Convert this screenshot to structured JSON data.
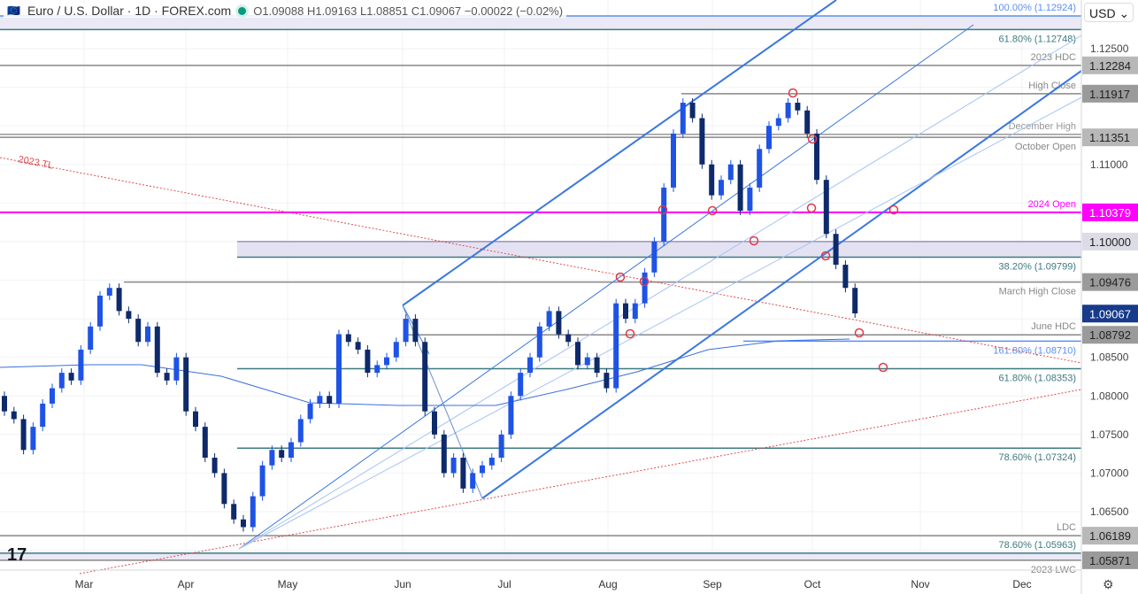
{
  "header": {
    "title": "Euro / U.S. Dollar · 1D · FOREX.com",
    "ohlc": "O1.09088 H1.09163 L1.08851 C1.09067 −0.00022 (−0.02%)",
    "currency": "USD"
  },
  "chart_data": {
    "type": "candlestick",
    "symbol": "EURUSD",
    "interval": "1D",
    "x_ticks": [
      "Mar",
      "Apr",
      "May",
      "Jun",
      "Jul",
      "Aug",
      "Sep",
      "Oct",
      "Nov",
      "Dec"
    ],
    "y_ticks": [
      "1.12500",
      "1.11000",
      "1.08500",
      "1.08000",
      "1.07500",
      "1.07000",
      "1.06500"
    ],
    "ylim": [
      1.0555,
      1.1313
    ],
    "closes": [
      1.078,
      1.077,
      1.073,
      1.076,
      1.079,
      1.081,
      1.083,
      1.082,
      1.086,
      1.089,
      1.093,
      1.094,
      1.091,
      1.09,
      1.087,
      1.089,
      1.083,
      1.082,
      1.085,
      1.078,
      1.076,
      1.072,
      1.07,
      1.066,
      1.064,
      1.063,
      1.067,
      1.071,
      1.073,
      1.072,
      1.074,
      1.077,
      1.079,
      1.08,
      1.079,
      1.088,
      1.087,
      1.086,
      1.083,
      1.084,
      1.085,
      1.087,
      1.09,
      1.087,
      1.078,
      1.075,
      1.07,
      1.072,
      1.068,
      1.07,
      1.071,
      1.072,
      1.075,
      1.08,
      1.083,
      1.085,
      1.089,
      1.091,
      1.088,
      1.087,
      1.084,
      1.085,
      1.083,
      1.081,
      1.092,
      1.09,
      1.092,
      1.096,
      1.1,
      1.107,
      1.114,
      1.118,
      1.116,
      1.11,
      1.106,
      1.108,
      1.11,
      1.104,
      1.107,
      1.112,
      1.115,
      1.116,
      1.118,
      1.117,
      1.114,
      1.108,
      1.101,
      1.097,
      1.094,
      1.0907
    ],
    "last_price": "1.09067",
    "levels": [
      {
        "price": 1.12924,
        "label": "100.00% (1.12924)",
        "color": "#5b8ff0"
      },
      {
        "price": 1.12748,
        "label": "61.80% (1.12748)",
        "color": "#3d7a80"
      },
      {
        "price": 1.12284,
        "label": "2023 HDC",
        "color": "#888888",
        "badge": "1.12284"
      },
      {
        "price": 1.11917,
        "label": "High Close",
        "color": "#888888",
        "badge": "1.11917"
      },
      {
        "price": 1.1139,
        "label": "December High",
        "color": "#999999"
      },
      {
        "price": 1.11351,
        "label": "October Open",
        "color": "#888888",
        "badge": "1.11351"
      },
      {
        "price": 1.10379,
        "label": "2024 Open",
        "color": "#ff00ff",
        "badge": "1.10379"
      },
      {
        "price": 1.1,
        "label": "",
        "color": "#9a93b8",
        "badge": "1.10000"
      },
      {
        "price": 1.09799,
        "label": "38.20% (1.09799)",
        "color": "#3d7a80"
      },
      {
        "price": 1.09476,
        "label": "March High Close",
        "color": "#888888",
        "badge": "1.09476"
      },
      {
        "price": 1.08792,
        "label": "June HDC",
        "color": "#888888",
        "badge": "1.08792"
      },
      {
        "price": 1.0871,
        "label": "161.80% (1.08710)",
        "color": "#5b8ff0"
      },
      {
        "price": 1.08353,
        "label": "61.80% (1.08353)",
        "color": "#3d7a80"
      },
      {
        "price": 1.07324,
        "label": "78.60% (1.07324)",
        "color": "#3d7a80"
      },
      {
        "price": 1.06189,
        "label": "LDC",
        "color": "#888888",
        "badge": "1.06189"
      },
      {
        "price": 1.05963,
        "label": "78.60% (1.05963)",
        "color": "#3d7a80"
      },
      {
        "price": 1.05871,
        "label": "2023 LWC",
        "color": "#888888",
        "badge": "1.05871"
      }
    ],
    "trendline_label": "2023 TL",
    "colors": {
      "up": "#1e53e5",
      "down": "#0e2a6b",
      "channel": "#3a78e0",
      "ma": "#3a6fe0",
      "trendline": "#e04b4b",
      "last": "#173a8a",
      "open2024": "#ff00ff"
    }
  }
}
